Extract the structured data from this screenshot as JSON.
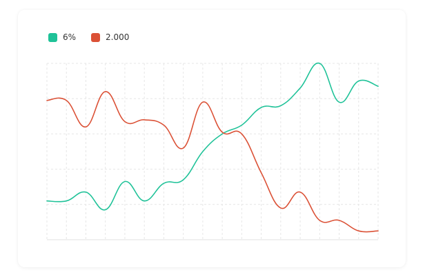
{
  "chart_data": {
    "type": "line",
    "title": "",
    "xlabel": "",
    "ylabel": "",
    "grid": true,
    "legend_position": "top-left",
    "ylim": [
      0,
      100
    ],
    "x": [
      0,
      1,
      2,
      3,
      4,
      5,
      6,
      7,
      8,
      9,
      10,
      11,
      12,
      13,
      14,
      15,
      16,
      17
    ],
    "series": [
      {
        "name": "6%",
        "color": "#1fc298",
        "values": [
          22,
          22,
          27,
          17,
          33,
          22,
          32,
          34,
          50,
          60,
          65,
          75,
          76,
          86,
          100,
          78,
          90,
          87
        ]
      },
      {
        "name": "2.000",
        "color": "#db5136",
        "values": [
          79,
          79,
          64,
          84,
          67,
          68,
          65,
          52,
          78,
          61,
          60,
          38,
          18,
          27,
          11,
          11,
          5,
          5
        ]
      }
    ]
  }
}
